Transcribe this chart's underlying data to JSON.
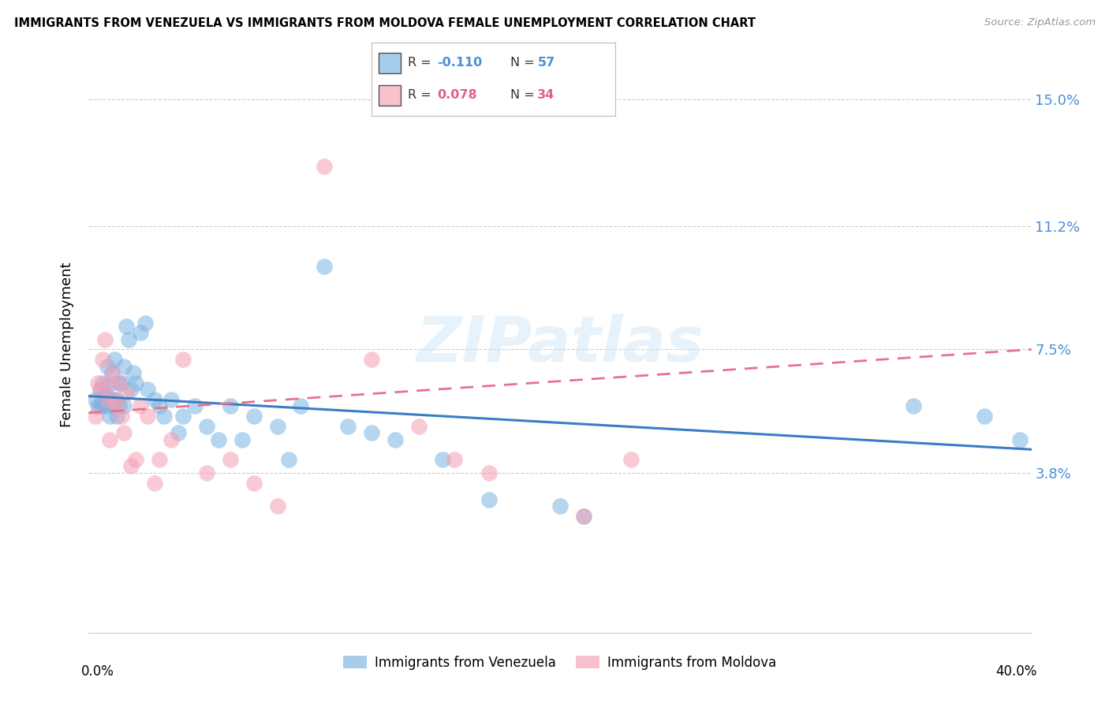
{
  "title": "IMMIGRANTS FROM VENEZUELA VS IMMIGRANTS FROM MOLDOVA FEMALE UNEMPLOYMENT CORRELATION CHART",
  "source": "Source: ZipAtlas.com",
  "ylabel": "Female Unemployment",
  "xlim": [
    0.0,
    0.4
  ],
  "ylim": [
    -0.01,
    0.163
  ],
  "ytick_vals": [
    0.0,
    0.038,
    0.075,
    0.112,
    0.15
  ],
  "ytick_labels": [
    "",
    "3.8%",
    "7.5%",
    "11.2%",
    "15.0%"
  ],
  "watermark": "ZIPatlas",
  "venezuela_R": -0.11,
  "venezuela_N": 57,
  "moldova_R": 0.078,
  "moldova_N": 34,
  "ven_color": "#7ab3e0",
  "mol_color": "#f4a0b5",
  "ven_line_color": "#3a7cc7",
  "mol_line_color": "#e8728a",
  "ven_label": "Immigrants from Venezuela",
  "mol_label": "Immigrants from Moldova",
  "ven_R_label": "-0.110",
  "ven_N_label": "57",
  "mol_R_label": "0.078",
  "mol_N_label": "34",
  "ven_line_start_y": 0.061,
  "ven_line_end_y": 0.045,
  "mol_line_start_y": 0.056,
  "mol_line_end_y": 0.075,
  "ven_x": [
    0.003,
    0.004,
    0.005,
    0.005,
    0.006,
    0.006,
    0.007,
    0.007,
    0.008,
    0.008,
    0.009,
    0.009,
    0.01,
    0.01,
    0.011,
    0.011,
    0.012,
    0.012,
    0.013,
    0.013,
    0.014,
    0.015,
    0.015,
    0.016,
    0.017,
    0.018,
    0.019,
    0.02,
    0.022,
    0.024,
    0.025,
    0.028,
    0.03,
    0.032,
    0.035,
    0.038,
    0.04,
    0.045,
    0.05,
    0.055,
    0.06,
    0.065,
    0.07,
    0.08,
    0.085,
    0.09,
    0.1,
    0.11,
    0.12,
    0.13,
    0.15,
    0.17,
    0.2,
    0.21,
    0.35,
    0.38,
    0.395
  ],
  "ven_y": [
    0.06,
    0.058,
    0.063,
    0.058,
    0.065,
    0.058,
    0.062,
    0.058,
    0.07,
    0.064,
    0.06,
    0.055,
    0.068,
    0.06,
    0.072,
    0.058,
    0.06,
    0.055,
    0.065,
    0.058,
    0.065,
    0.07,
    0.058,
    0.082,
    0.078,
    0.063,
    0.068,
    0.065,
    0.08,
    0.083,
    0.063,
    0.06,
    0.058,
    0.055,
    0.06,
    0.05,
    0.055,
    0.058,
    0.052,
    0.048,
    0.058,
    0.048,
    0.055,
    0.052,
    0.042,
    0.058,
    0.1,
    0.052,
    0.05,
    0.048,
    0.042,
    0.03,
    0.028,
    0.025,
    0.058,
    0.055,
    0.048
  ],
  "mol_x": [
    0.003,
    0.004,
    0.005,
    0.006,
    0.007,
    0.008,
    0.008,
    0.009,
    0.01,
    0.011,
    0.012,
    0.013,
    0.014,
    0.015,
    0.016,
    0.018,
    0.02,
    0.022,
    0.025,
    0.028,
    0.03,
    0.035,
    0.04,
    0.05,
    0.06,
    0.07,
    0.08,
    0.1,
    0.12,
    0.14,
    0.155,
    0.17,
    0.21,
    0.23
  ],
  "mol_y": [
    0.055,
    0.065,
    0.063,
    0.072,
    0.078,
    0.06,
    0.065,
    0.048,
    0.068,
    0.06,
    0.058,
    0.065,
    0.055,
    0.05,
    0.062,
    0.04,
    0.042,
    0.058,
    0.055,
    0.035,
    0.042,
    0.048,
    0.072,
    0.038,
    0.042,
    0.035,
    0.028,
    0.13,
    0.072,
    0.052,
    0.042,
    0.038,
    0.025,
    0.042
  ]
}
